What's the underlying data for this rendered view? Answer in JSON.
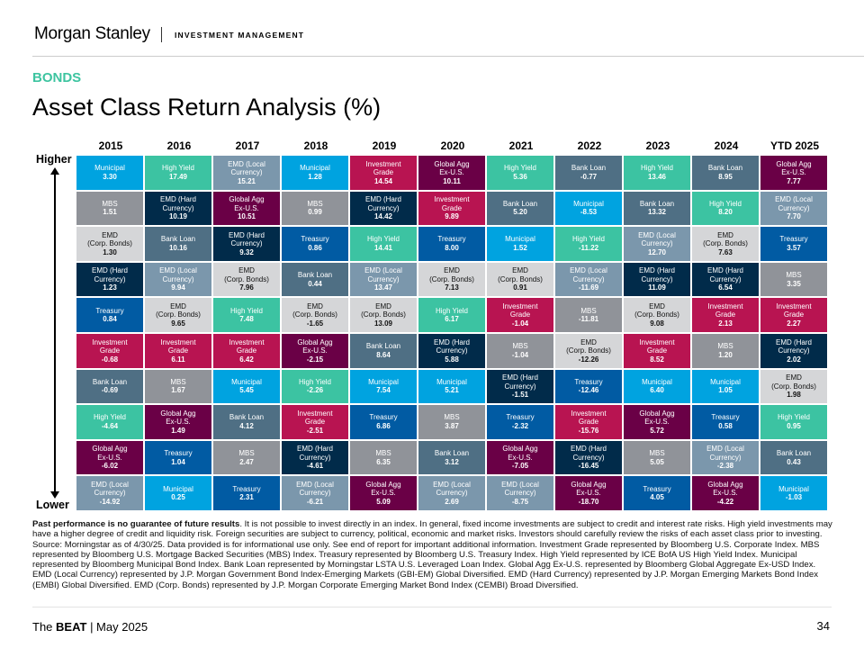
{
  "header": {
    "brand": "Morgan Stanley",
    "division": "INVESTMENT MANAGEMENT",
    "section": "BONDS",
    "title": "Asset Class Return Analysis (%)"
  },
  "axis": {
    "higher": "Higher",
    "lower": "Lower"
  },
  "chart_data": {
    "type": "table",
    "title": "Asset Class Return Analysis (%)",
    "assets": {
      "muni": {
        "lines": [
          "Municipal"
        ],
        "color": "#00a3e0",
        "dark": false
      },
      "hy": {
        "lines": [
          "High Yield"
        ],
        "color": "#3cc3a2",
        "dark": false
      },
      "emdl": {
        "lines": [
          "EMD (Local",
          "Currency)"
        ],
        "color": "#7b97ac",
        "dark": false
      },
      "mbs": {
        "lines": [
          "MBS"
        ],
        "color": "#909399",
        "dark": false
      },
      "emdh": {
        "lines": [
          "EMD (Hard",
          "Currency)"
        ],
        "color": "#012b4a",
        "dark": false
      },
      "gagg": {
        "lines": [
          "Global Agg",
          "Ex-U.S."
        ],
        "color": "#6a0046",
        "dark": false
      },
      "bl": {
        "lines": [
          "Bank Loan"
        ],
        "color": "#4f6f84",
        "dark": false
      },
      "tsy": {
        "lines": [
          "Treasury"
        ],
        "color": "#015ba3",
        "dark": false
      },
      "ig": {
        "lines": [
          "Investment",
          "Grade"
        ],
        "color": "#b81451",
        "dark": false
      },
      "emdc": {
        "lines": [
          "EMD",
          "(Corp. Bonds)"
        ],
        "color": "#d5d6d8",
        "dark": true
      }
    },
    "columns": [
      {
        "year": "2015",
        "cells": [
          [
            "muni",
            "3.30"
          ],
          [
            "mbs",
            "1.51"
          ],
          [
            "emdc",
            "1.30"
          ],
          [
            "emdh",
            "1.23"
          ],
          [
            "tsy",
            "0.84"
          ],
          [
            "ig",
            "-0.68"
          ],
          [
            "bl",
            "-0.69"
          ],
          [
            "hy",
            "-4.64"
          ],
          [
            "gagg",
            "-6.02"
          ],
          [
            "emdl",
            "-14.92"
          ]
        ]
      },
      {
        "year": "2016",
        "cells": [
          [
            "hy",
            "17.49"
          ],
          [
            "emdh",
            "10.19"
          ],
          [
            "bl",
            "10.16"
          ],
          [
            "emdl",
            "9.94"
          ],
          [
            "emdc",
            "9.65"
          ],
          [
            "ig",
            "6.11"
          ],
          [
            "mbs",
            "1.67"
          ],
          [
            "gagg",
            "1.49"
          ],
          [
            "tsy",
            "1.04"
          ],
          [
            "muni",
            "0.25"
          ]
        ]
      },
      {
        "year": "2017",
        "cells": [
          [
            "emdl",
            "15.21"
          ],
          [
            "gagg",
            "10.51"
          ],
          [
            "emdh",
            "9.32"
          ],
          [
            "emdc",
            "7.96"
          ],
          [
            "hy",
            "7.48"
          ],
          [
            "ig",
            "6.42"
          ],
          [
            "muni",
            "5.45"
          ],
          [
            "bl",
            "4.12"
          ],
          [
            "mbs",
            "2.47"
          ],
          [
            "tsy",
            "2.31"
          ]
        ]
      },
      {
        "year": "2018",
        "cells": [
          [
            "muni",
            "1.28"
          ],
          [
            "mbs",
            "0.99"
          ],
          [
            "tsy",
            "0.86"
          ],
          [
            "bl",
            "0.44"
          ],
          [
            "emdc",
            "-1.65"
          ],
          [
            "gagg",
            "-2.15"
          ],
          [
            "hy",
            "-2.26"
          ],
          [
            "ig",
            "-2.51"
          ],
          [
            "emdh",
            "-4.61"
          ],
          [
            "emdl",
            "-6.21"
          ]
        ]
      },
      {
        "year": "2019",
        "cells": [
          [
            "ig",
            "14.54"
          ],
          [
            "emdh",
            "14.42"
          ],
          [
            "hy",
            "14.41"
          ],
          [
            "emdl",
            "13.47"
          ],
          [
            "emdc",
            "13.09"
          ],
          [
            "bl",
            "8.64"
          ],
          [
            "muni",
            "7.54"
          ],
          [
            "tsy",
            "6.86"
          ],
          [
            "mbs",
            "6.35"
          ],
          [
            "gagg",
            "5.09"
          ]
        ]
      },
      {
        "year": "2020",
        "cells": [
          [
            "gagg",
            "10.11"
          ],
          [
            "ig",
            "9.89"
          ],
          [
            "tsy",
            "8.00"
          ],
          [
            "emdc",
            "7.13"
          ],
          [
            "hy",
            "6.17"
          ],
          [
            "emdh",
            "5.88"
          ],
          [
            "muni",
            "5.21"
          ],
          [
            "mbs",
            "3.87"
          ],
          [
            "bl",
            "3.12"
          ],
          [
            "emdl",
            "2.69"
          ]
        ]
      },
      {
        "year": "2021",
        "cells": [
          [
            "hy",
            "5.36"
          ],
          [
            "bl",
            "5.20"
          ],
          [
            "muni",
            "1.52"
          ],
          [
            "emdc",
            "0.91"
          ],
          [
            "ig",
            "-1.04"
          ],
          [
            "mbs",
            "-1.04"
          ],
          [
            "emdh",
            "-1.51"
          ],
          [
            "tsy",
            "-2.32"
          ],
          [
            "gagg",
            "-7.05"
          ],
          [
            "emdl",
            "-8.75"
          ]
        ]
      },
      {
        "year": "2022",
        "cells": [
          [
            "bl",
            "-0.77"
          ],
          [
            "muni",
            "-8.53"
          ],
          [
            "hy",
            "-11.22"
          ],
          [
            "emdl",
            "-11.69"
          ],
          [
            "mbs",
            "-11.81"
          ],
          [
            "emdc",
            "-12.26"
          ],
          [
            "tsy",
            "-12.46"
          ],
          [
            "ig",
            "-15.76"
          ],
          [
            "emdh",
            "-16.45"
          ],
          [
            "gagg",
            "-18.70"
          ]
        ]
      },
      {
        "year": "2023",
        "cells": [
          [
            "hy",
            "13.46"
          ],
          [
            "bl",
            "13.32"
          ],
          [
            "emdl",
            "12.70"
          ],
          [
            "emdh",
            "11.09"
          ],
          [
            "emdc",
            "9.08"
          ],
          [
            "ig",
            "8.52"
          ],
          [
            "muni",
            "6.40"
          ],
          [
            "gagg",
            "5.72"
          ],
          [
            "mbs",
            "5.05"
          ],
          [
            "tsy",
            "4.05"
          ]
        ]
      },
      {
        "year": "2024",
        "cells": [
          [
            "bl",
            "8.95"
          ],
          [
            "hy",
            "8.20"
          ],
          [
            "emdc",
            "7.63"
          ],
          [
            "emdh",
            "6.54"
          ],
          [
            "ig",
            "2.13"
          ],
          [
            "mbs",
            "1.20"
          ],
          [
            "muni",
            "1.05"
          ],
          [
            "tsy",
            "0.58"
          ],
          [
            "emdl",
            "-2.38"
          ],
          [
            "gagg",
            "-4.22"
          ]
        ]
      },
      {
        "year": "YTD 2025",
        "cells": [
          [
            "gagg",
            "7.77"
          ],
          [
            "emdl",
            "7.70"
          ],
          [
            "tsy",
            "3.57"
          ],
          [
            "mbs",
            "3.35"
          ],
          [
            "ig",
            "2.27"
          ],
          [
            "emdh",
            "2.02"
          ],
          [
            "emdc",
            "1.98"
          ],
          [
            "hy",
            "0.95"
          ],
          [
            "bl",
            "0.43"
          ],
          [
            "muni",
            "-1.03"
          ]
        ]
      }
    ]
  },
  "disclaimer": {
    "bold": "Past performance is no guarantee of future results",
    "text": ". It is not possible to invest directly in an index. In general, fixed income investments are subject to credit and interest rate risks. High yield investments may have a higher degree of credit and liquidity risk. Foreign securities are subject to currency, political, economic and market risks. Investors should carefully review the risks of each asset class prior to investing. Source: Morningstar as of 4/30/25. Data provided is for informational use only. See end of report for important additional information. Investment Grade represented by Bloomberg U.S. Corporate Index. MBS represented by Bloomberg U.S. Mortgage Backed Securities (MBS) Index. Treasury represented by Bloomberg U.S. Treasury Index. High Yield represented by ICE BofA US High Yield Index. Municipal represented by Bloomberg Municipal Bond Index. Bank Loan represented by Morningstar LSTA U.S. Leveraged Loan Index. Global Agg Ex-U.S. represented by Bloomberg Global Aggregate Ex-USD Index. EMD (Local Currency) represented by J.P. Morgan Government Bond Index-Emerging Markets (GBI-EM) Global Diversified. EMD (Hard Currency) represented by J.P. Morgan Emerging Markets Bond Index (EMBI) Global Diversified. EMD (Corp. Bonds) represented by J.P. Morgan Corporate Emerging Market Bond Index (CEMBI) Broad Diversified."
  },
  "footer": {
    "pub_pre": "The ",
    "pub_bold": "BEAT",
    "pub_post": " | May 2025",
    "page": "34"
  }
}
